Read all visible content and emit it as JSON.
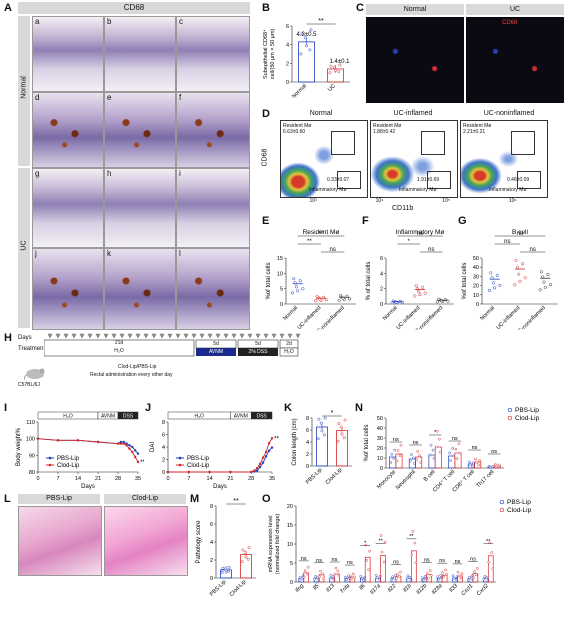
{
  "panels": {
    "A": "A",
    "B": "B",
    "C": "C",
    "D": "D",
    "E": "E",
    "F": "F",
    "G": "G",
    "H": "H",
    "I": "I",
    "J": "J",
    "K": "K",
    "L": "L",
    "M": "M",
    "N": "N",
    "O": "O"
  },
  "panelA": {
    "title": "CD68",
    "row_labels": [
      "Normal",
      "UC"
    ],
    "tile_labels": [
      "a",
      "b",
      "c",
      "d",
      "e",
      "f",
      "g",
      "h",
      "i",
      "j",
      "k",
      "l"
    ]
  },
  "panelC": {
    "labels": [
      "Normal",
      "UC"
    ],
    "stain": "CD68"
  },
  "panelD": {
    "titles": [
      "Normal",
      "UC-inflamed",
      "UC-noninflamed"
    ],
    "resident_values": [
      "Resident Mø\n6.63±0.60",
      "Resident Mø\n1.88±0.42",
      "Resident Mø\n2.21±0.21"
    ],
    "inflammatory_values": [
      "0.33±0.07",
      "1.91±0.69",
      "0.46±0.09"
    ],
    "inflammatory_label": "Inflammatory Mø",
    "y_axis": "CD68",
    "x_axis": "CD11b",
    "ticks": [
      "10³",
      "10⁴",
      "10⁵",
      "10⁶"
    ]
  },
  "panelH": {
    "days_label": "Days",
    "treatment_label": "Treatment",
    "phase1": "21d",
    "phase1_sub": "H₂O",
    "phase2": [
      "5d",
      "5d",
      "2d"
    ],
    "phase2_sub": [
      "AVNM",
      "2% DSS",
      "H₂O"
    ],
    "mouse": "C57BL/6J",
    "clod": "Clod-Lip/PBS-Lip",
    "rectal": "Rectal administration every other day"
  },
  "panelL": {
    "labels": [
      "PBS-Lip",
      "Clod-Lip"
    ]
  },
  "chart_data": [
    {
      "id": "B",
      "type": "bar",
      "categories": [
        "Normal",
        "UC"
      ],
      "values": [
        4.3,
        1.4
      ],
      "annotations": [
        "4.3±0.5",
        "1.4±0.1"
      ],
      "ylabel": "Subepithelial CD68⁺ cell/(50 μm × 50 μm)",
      "ylim": [
        0,
        6
      ],
      "yticks": [
        "0",
        "2",
        "4",
        "6"
      ],
      "significance": "**",
      "colors": [
        "#1f3fbf",
        "#d62728"
      ]
    },
    {
      "id": "E",
      "type": "scatter",
      "title": "Resident Mø",
      "categories": [
        "Normal",
        "UC-inflamed",
        "UC-noninflamed"
      ],
      "values": [
        6.6,
        1.9,
        2.2
      ],
      "ylabel": "%of total cells",
      "ylim": [
        0,
        15
      ],
      "yticks": [
        "0",
        "5",
        "10",
        "15"
      ],
      "significance": [
        "**",
        "**",
        "ns"
      ],
      "colors": [
        "#1f3fbf",
        "#d62728",
        "#333333"
      ]
    },
    {
      "id": "F",
      "type": "scatter",
      "title": "Inflammatory Mø",
      "categories": [
        "Normal",
        "UC-inflamed",
        "UC-noninflamed"
      ],
      "values": [
        0.3,
        1.9,
        0.5
      ],
      "ylabel": "% of total cells",
      "ylim": [
        0,
        6
      ],
      "yticks": [
        "0",
        "2",
        "4",
        "6"
      ],
      "significance": [
        "*",
        "ns",
        "ns"
      ],
      "colors": [
        "#1f3fbf",
        "#d62728",
        "#333333"
      ]
    },
    {
      "id": "G",
      "type": "scatter",
      "title": "B cell",
      "categories": [
        "Normal",
        "UC-inflamed",
        "UC-noninflamed"
      ],
      "values": [
        27,
        38,
        28
      ],
      "ylabel": "%of total cells",
      "ylim": [
        0,
        50
      ],
      "yticks": [
        "0",
        "10",
        "20",
        "30",
        "40",
        "50"
      ],
      "significance": [
        "ns",
        "ns",
        "ns"
      ],
      "colors": [
        "#1f3fbf",
        "#d62728",
        "#333333"
      ]
    },
    {
      "id": "I",
      "type": "line",
      "x": [
        0,
        7,
        14,
        21,
        28,
        29,
        30,
        31,
        32,
        33,
        34,
        35
      ],
      "series": [
        {
          "name": "PBS-Lip",
          "color": "#1f3fbf",
          "values": [
            100,
            99,
            99,
            98,
            97,
            98,
            98,
            97,
            96,
            95,
            93,
            91
          ]
        },
        {
          "name": "Clod-Lip",
          "color": "#d62728",
          "values": [
            100,
            99,
            99,
            98,
            97,
            97,
            97,
            96,
            94,
            92,
            89,
            86
          ]
        }
      ],
      "xlabel": "Days",
      "ylabel": "Body weight%",
      "xticks": [
        "0",
        "7",
        "14",
        "21",
        "28",
        "35"
      ],
      "yticks": [
        "80",
        "90",
        "100",
        "110"
      ],
      "ylim": [
        80,
        110
      ],
      "phases": [
        "H₂O",
        "AVNM",
        "DSS"
      ],
      "significance": "**"
    },
    {
      "id": "J",
      "type": "line",
      "x": [
        0,
        7,
        14,
        21,
        28,
        29,
        30,
        31,
        32,
        33,
        34,
        35
      ],
      "series": [
        {
          "name": "PBS-Lip",
          "color": "#1f3fbf",
          "values": [
            0,
            0,
            0,
            0,
            0,
            0.1,
            0.2,
            0.8,
            1.5,
            2.5,
            3.4,
            3.9
          ]
        },
        {
          "name": "Clod-Lip",
          "color": "#d62728",
          "values": [
            0,
            0,
            0,
            0,
            0,
            0.2,
            0.6,
            1.3,
            2.3,
            3.2,
            4.6,
            5.4
          ]
        }
      ],
      "xlabel": "Days",
      "ylabel": "DAI",
      "xticks": [
        "0",
        "7",
        "14",
        "21",
        "28",
        "35"
      ],
      "yticks": [
        "0",
        "2",
        "4",
        "6",
        "8"
      ],
      "ylim": [
        0,
        8
      ],
      "phases": [
        "H₂O",
        "AVNM",
        "DSS"
      ],
      "significance": "**"
    },
    {
      "id": "K",
      "type": "bar",
      "categories": [
        "PBS-Lip",
        "Clod-Lip"
      ],
      "values": [
        6.5,
        5.9
      ],
      "ylabel": "Colon length (cm)",
      "ylim": [
        0,
        8
      ],
      "yticks": [
        "0",
        "2",
        "4",
        "6",
        "8"
      ],
      "significance": "*",
      "colors": [
        "#1f3fbf",
        "#d62728"
      ]
    },
    {
      "id": "M",
      "type": "bar",
      "categories": [
        "PBS-Lip",
        "Clod-Lip"
      ],
      "values": [
        0.9,
        2.6
      ],
      "ylabel": "Pathology score",
      "ylim": [
        0,
        8
      ],
      "yticks": [
        "0",
        "2",
        "4",
        "6",
        "8"
      ],
      "significance": "**",
      "colors": [
        "#1f3fbf",
        "#d62728"
      ]
    },
    {
      "id": "N",
      "type": "bar",
      "categories": [
        "Monocyte",
        "Neutrophil",
        "B cell",
        "CD4⁺ T cell",
        "CD8⁺ T cell",
        "Th17 cell"
      ],
      "series": [
        {
          "name": "PBS-Lip",
          "color": "#1f3fbf",
          "values": [
            11,
            9,
            13,
            12,
            4,
            1
          ]
        },
        {
          "name": "Clod-Lip",
          "color": "#d62728",
          "values": [
            14,
            11,
            21,
            15,
            6,
            2
          ]
        }
      ],
      "ylabel": "%of total cells",
      "ylim": [
        0,
        50
      ],
      "yticks": [
        "0",
        "10",
        "20",
        "30",
        "40",
        "50"
      ],
      "significance": [
        "ns",
        "ns",
        "*",
        "ns",
        "ns",
        "ns"
      ]
    },
    {
      "id": "O",
      "type": "bar",
      "categories": [
        "Ifng",
        "Il5",
        "Il13",
        "Tnfa",
        "Il6",
        "Il17a",
        "Il22",
        "Il1b",
        "Il12b",
        "Il23a",
        "Il33",
        "Cxcl1",
        "Cxcl2"
      ],
      "series": [
        {
          "name": "PBS-Lip",
          "color": "#1f3fbf",
          "values": [
            1,
            1,
            1,
            1,
            1,
            1,
            1,
            1,
            1,
            1,
            1,
            1,
            1
          ]
        },
        {
          "name": "Clod-Lip",
          "color": "#d62728",
          "values": [
            2.4,
            1.9,
            2.1,
            1.3,
            6.5,
            7.0,
            1.5,
            8.2,
            2.0,
            1.8,
            1.6,
            2.2,
            6.9
          ]
        }
      ],
      "ylabel": "mRNA expression level (normalized fold change)",
      "ylim": [
        0,
        20
      ],
      "yticks": [
        "0",
        "5",
        "10",
        "15",
        "20"
      ],
      "significance": [
        "ns",
        "ns",
        "ns",
        "ns",
        "*",
        "**",
        "ns",
        "**",
        "ns",
        "ns",
        "ns",
        "ns",
        "**"
      ]
    }
  ]
}
